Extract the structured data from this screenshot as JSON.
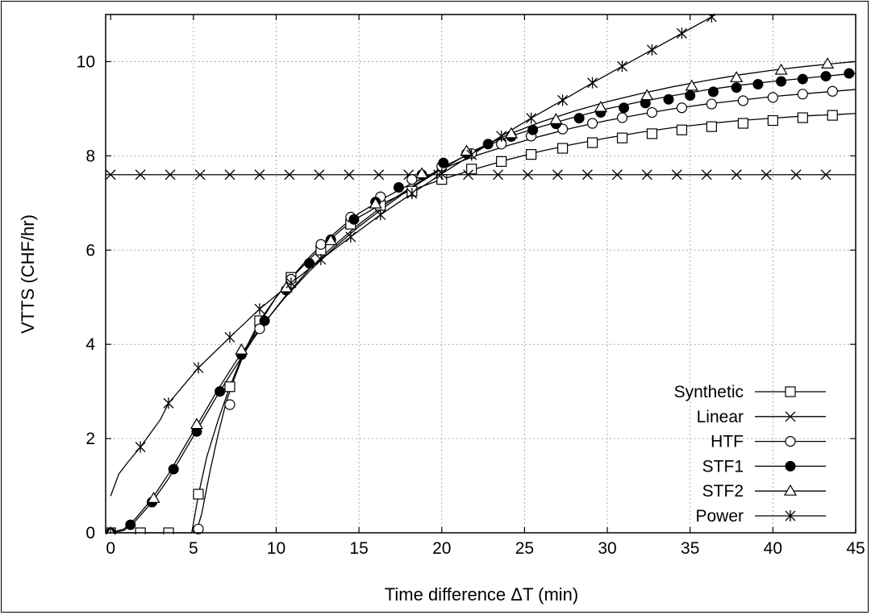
{
  "chart_data": {
    "type": "line",
    "title": "",
    "xlabel": "Time difference ΔT (min)",
    "ylabel": "VTTS (CHF/hr)",
    "xlim": [
      -0.3,
      45
    ],
    "ylim": [
      0,
      11
    ],
    "xticks": [
      0,
      5,
      10,
      15,
      20,
      25,
      30,
      35,
      40,
      45
    ],
    "yticks": [
      0,
      2,
      4,
      6,
      8,
      10
    ],
    "grid": true,
    "legend_position": "bottom-right",
    "series": [
      {
        "name": "Synthetic",
        "marker": "square",
        "curve": {
          "x": [
            0,
            1.8,
            3.5,
            4.9,
            5.0,
            5.3,
            5.8,
            6.5,
            7.2,
            8.0,
            9.0,
            10.0,
            10.9,
            12,
            13,
            14,
            15,
            16.5,
            18,
            20,
            22,
            24,
            26,
            28,
            30,
            32,
            34,
            36,
            38,
            40,
            42,
            44,
            45
          ],
          "y": [
            0,
            0,
            0,
            0,
            0.2,
            0.8,
            1.6,
            2.4,
            3.1,
            3.8,
            4.5,
            5.0,
            5.4,
            5.8,
            6.15,
            6.45,
            6.7,
            7.0,
            7.25,
            7.5,
            7.72,
            7.92,
            8.1,
            8.25,
            8.38,
            8.5,
            8.6,
            8.68,
            8.75,
            8.8,
            8.85,
            8.88,
            8.9
          ]
        },
        "marker_x": [
          0,
          1.8,
          3.5,
          5.3,
          7.2,
          9.0,
          10.9,
          12.7,
          14.5,
          16.3,
          18.2,
          20.0,
          21.8,
          23.6,
          25.4,
          27.3,
          29.1,
          30.9,
          32.7,
          34.5,
          36.3,
          38.2,
          40.0,
          41.8,
          43.6
        ],
        "marker_y": [
          0,
          0,
          0,
          0.82,
          3.1,
          4.5,
          5.42,
          6.0,
          6.55,
          6.95,
          7.25,
          7.5,
          7.72,
          7.88,
          8.03,
          8.16,
          8.28,
          8.38,
          8.47,
          8.55,
          8.62,
          8.69,
          8.75,
          8.81,
          8.86
        ]
      },
      {
        "name": "Linear",
        "marker": "x",
        "curve": {
          "x": [
            -0.3,
            45
          ],
          "y": [
            7.6,
            7.6
          ]
        },
        "marker_x": [
          0,
          1.8,
          3.6,
          5.4,
          7.2,
          9.0,
          10.8,
          12.6,
          14.4,
          16.2,
          18.0,
          19.8,
          21.6,
          23.4,
          25.2,
          27.0,
          28.8,
          30.6,
          32.4,
          34.2,
          36.0,
          37.8,
          39.6,
          41.4,
          43.2
        ],
        "marker_y": [
          7.6,
          7.6,
          7.6,
          7.6,
          7.6,
          7.6,
          7.6,
          7.6,
          7.6,
          7.6,
          7.6,
          7.6,
          7.6,
          7.6,
          7.6,
          7.6,
          7.6,
          7.6,
          7.6,
          7.6,
          7.6,
          7.6,
          7.6,
          7.6,
          7.6
        ]
      },
      {
        "name": "HTF",
        "marker": "circle",
        "curve": {
          "x": [
            5.0,
            5.2,
            5.5,
            6.0,
            6.5,
            7.0,
            7.5,
            8.0,
            9.0,
            10.0,
            11,
            12,
            13,
            14,
            15,
            16.5,
            18,
            20,
            22,
            24,
            26,
            28,
            30,
            32,
            34,
            36,
            38,
            40,
            42,
            44,
            45
          ],
          "y": [
            0,
            0.05,
            0.4,
            1.3,
            2.1,
            2.8,
            3.3,
            3.75,
            4.45,
            5.0,
            5.45,
            5.85,
            6.2,
            6.5,
            6.78,
            7.1,
            7.38,
            7.72,
            8.0,
            8.22,
            8.42,
            8.6,
            8.75,
            8.88,
            9.0,
            9.1,
            9.18,
            9.26,
            9.32,
            9.38,
            9.41
          ]
        },
        "marker_x": [
          5.3,
          7.2,
          9.0,
          10.9,
          12.7,
          14.5,
          16.3,
          18.2,
          20.0,
          21.8,
          23.6,
          25.4,
          27.3,
          29.1,
          30.9,
          32.7,
          34.5,
          36.3,
          38.2,
          40.0,
          41.8,
          43.6
        ],
        "marker_y": [
          0.08,
          2.72,
          4.33,
          5.38,
          6.12,
          6.7,
          7.13,
          7.5,
          7.78,
          8.05,
          8.25,
          8.42,
          8.57,
          8.69,
          8.81,
          8.92,
          9.02,
          9.1,
          9.17,
          9.24,
          9.31,
          9.37
        ]
      },
      {
        "name": "STF1",
        "marker": "filled-circle",
        "curve": {
          "x": [
            0,
            0.8,
            1.5,
            2.5,
            3.5,
            4.5,
            5.5,
            6.5,
            7.5,
            8.5,
            9.5,
            10.5,
            12,
            13.5,
            15,
            16.5,
            18,
            20,
            22,
            24,
            26,
            28,
            30,
            32,
            34,
            36,
            38,
            40,
            42,
            44,
            45
          ],
          "y": [
            0,
            0.05,
            0.25,
            0.65,
            1.15,
            1.75,
            2.35,
            2.95,
            3.5,
            4.05,
            4.55,
            5.0,
            5.6,
            6.1,
            6.55,
            6.95,
            7.3,
            7.75,
            8.1,
            8.4,
            8.62,
            8.82,
            9.0,
            9.15,
            9.28,
            9.4,
            9.5,
            9.58,
            9.65,
            9.72,
            9.75
          ]
        },
        "marker_x": [
          0,
          1.2,
          2.5,
          3.8,
          5.2,
          6.6,
          7.9,
          9.3,
          10.6,
          12.0,
          13.3,
          14.7,
          16.0,
          17.4,
          18.8,
          20.1,
          21.5,
          22.8,
          24.2,
          25.5,
          26.9,
          28.3,
          29.6,
          31.0,
          32.3,
          33.7,
          35.0,
          36.4,
          37.8,
          39.1,
          40.5,
          41.8,
          43.2,
          44.6
        ],
        "marker_y": [
          0,
          0.17,
          0.65,
          1.35,
          2.15,
          3.0,
          3.78,
          4.5,
          5.15,
          5.72,
          6.22,
          6.65,
          7.02,
          7.33,
          7.6,
          7.85,
          8.05,
          8.25,
          8.41,
          8.55,
          8.68,
          8.8,
          8.92,
          9.02,
          9.12,
          9.2,
          9.28,
          9.36,
          9.45,
          9.52,
          9.58,
          9.63,
          9.69,
          9.75
        ]
      },
      {
        "name": "STF2",
        "marker": "triangle",
        "curve": {
          "x": [
            0,
            0.8,
            1.5,
            2.5,
            3.5,
            4.5,
            5.5,
            6.5,
            7.5,
            8.5,
            9.5,
            10.5,
            12,
            13.5,
            15,
            16.5,
            18,
            20,
            22,
            24,
            26,
            28,
            30,
            32,
            34,
            36,
            38,
            40,
            42,
            44,
            45
          ],
          "y": [
            0,
            0.08,
            0.3,
            0.72,
            1.25,
            1.85,
            2.45,
            3.05,
            3.6,
            4.1,
            4.55,
            4.98,
            5.55,
            6.05,
            6.5,
            6.9,
            7.28,
            7.72,
            8.12,
            8.45,
            8.72,
            8.95,
            9.15,
            9.32,
            9.47,
            9.6,
            9.72,
            9.82,
            9.9,
            9.97,
            10.0
          ]
        },
        "marker_x": [
          0,
          2.6,
          5.2,
          7.9,
          10.6,
          13.3,
          16.0,
          18.8,
          21.5,
          24.2,
          26.9,
          29.6,
          32.4,
          35.1,
          37.8,
          40.5,
          43.3
        ],
        "marker_y": [
          0,
          0.73,
          2.3,
          3.88,
          5.2,
          6.2,
          6.98,
          7.62,
          8.1,
          8.47,
          8.77,
          9.03,
          9.28,
          9.48,
          9.66,
          9.82,
          9.95
        ]
      },
      {
        "name": "Power",
        "marker": "asterisk",
        "curve": {
          "x": [
            0,
            0.5,
            1,
            1.8,
            3,
            3.5,
            5.3,
            7.2,
            9.0,
            10.9,
            12.7,
            14.5,
            16.3,
            18.2,
            20.0,
            21.8,
            23.6,
            25.4,
            27.3,
            29.1,
            30.9,
            32.7,
            34.5,
            36.3,
            36.8
          ],
          "y": [
            0.78,
            1.25,
            1.48,
            1.82,
            2.4,
            2.75,
            3.5,
            4.15,
            4.75,
            5.3,
            5.8,
            6.28,
            6.75,
            7.2,
            7.62,
            8.02,
            8.42,
            8.8,
            9.18,
            9.55,
            9.9,
            10.25,
            10.6,
            10.95,
            11.05
          ]
        },
        "marker_x": [
          1.8,
          3.5,
          5.3,
          7.2,
          9.0,
          10.9,
          12.7,
          14.5,
          16.3,
          18.2,
          20.0,
          21.8,
          23.6,
          25.4,
          27.3,
          29.1,
          30.9,
          32.7,
          34.5,
          36.3
        ],
        "marker_y": [
          1.82,
          2.75,
          3.5,
          4.15,
          4.75,
          5.3,
          5.8,
          6.28,
          6.75,
          7.2,
          7.62,
          8.02,
          8.42,
          8.8,
          9.18,
          9.55,
          9.9,
          10.25,
          10.6,
          10.95
        ]
      }
    ]
  }
}
